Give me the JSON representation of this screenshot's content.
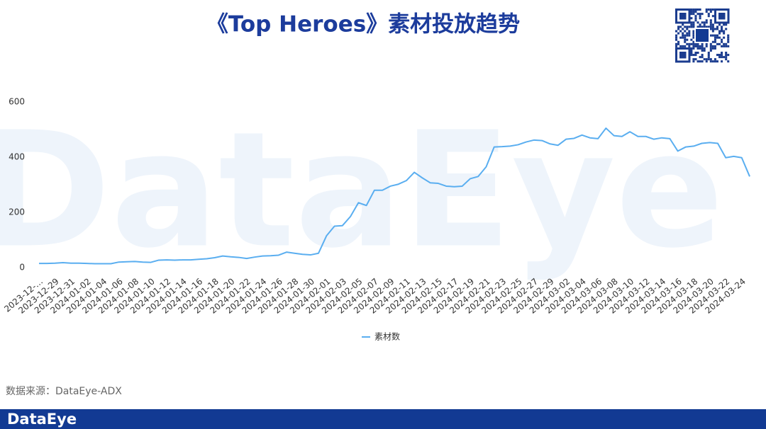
{
  "chart_data": {
    "type": "line",
    "title": "《Top Heroes》素材投放趋势",
    "watermark": "DataEye",
    "source": "数据来源：DataEye-ADX",
    "footer": "DataEye",
    "categories": [
      "2023-12-…",
      null,
      "2023-12-29",
      null,
      "2023-12-31",
      null,
      "2024-01-02",
      null,
      "2024-01-04",
      null,
      "2024-01-06",
      null,
      "2024-01-08",
      null,
      "2024-01-10",
      null,
      "2024-01-12",
      null,
      "2024-01-14",
      null,
      "2024-01-16",
      null,
      "2024-01-18",
      null,
      "2024-01-20",
      null,
      "2024-01-22",
      null,
      "2024-01-24",
      null,
      "2024-01-26",
      null,
      "2024-01-28",
      null,
      "2024-01-30",
      null,
      "2024-02-01",
      null,
      "2024-02-03",
      null,
      "2024-02-05",
      null,
      "2024-02-07",
      null,
      "2024-02-09",
      null,
      "2024-02-11",
      null,
      "2024-02-13",
      null,
      "2024-02-15",
      null,
      "2024-02-17",
      null,
      "2024-02-19",
      null,
      "2024-02-21",
      null,
      "2024-02-23",
      null,
      "2024-02-25",
      null,
      "2024-02-27",
      null,
      "2024-02-29",
      null,
      "2024-03-02",
      null,
      "2024-03-04",
      null,
      "2024-03-06",
      null,
      "2024-03-08",
      null,
      "2024-03-10",
      null,
      "2024-03-12",
      null,
      "2024-03-14",
      null,
      "2024-03-16",
      null,
      "2024-03-18",
      null,
      "2024-03-20",
      null,
      "2024-03-22",
      null,
      "2024-03-24",
      null
    ],
    "series": [
      {
        "name": "素材数",
        "color": "#5aaef0",
        "values": [
          15,
          15,
          16,
          18,
          16,
          16,
          15,
          14,
          14,
          14,
          20,
          21,
          22,
          20,
          19,
          27,
          28,
          27,
          28,
          28,
          30,
          32,
          36,
          42,
          39,
          37,
          33,
          38,
          42,
          43,
          45,
          56,
          52,
          48,
          46,
          52,
          115,
          150,
          152,
          185,
          235,
          225,
          280,
          280,
          295,
          302,
          315,
          345,
          325,
          307,
          305,
          295,
          293,
          295,
          322,
          330,
          365,
          437,
          438,
          440,
          445,
          455,
          462,
          460,
          448,
          443,
          465,
          468,
          480,
          470,
          467,
          505,
          478,
          475,
          492,
          475,
          475,
          465,
          470,
          467,
          422,
          437,
          440,
          450,
          453,
          450,
          398,
          403,
          398,
          330
        ]
      }
    ],
    "ylim": [
      0,
      600
    ],
    "yticks": [
      0,
      200,
      400,
      600
    ],
    "grid": false
  }
}
